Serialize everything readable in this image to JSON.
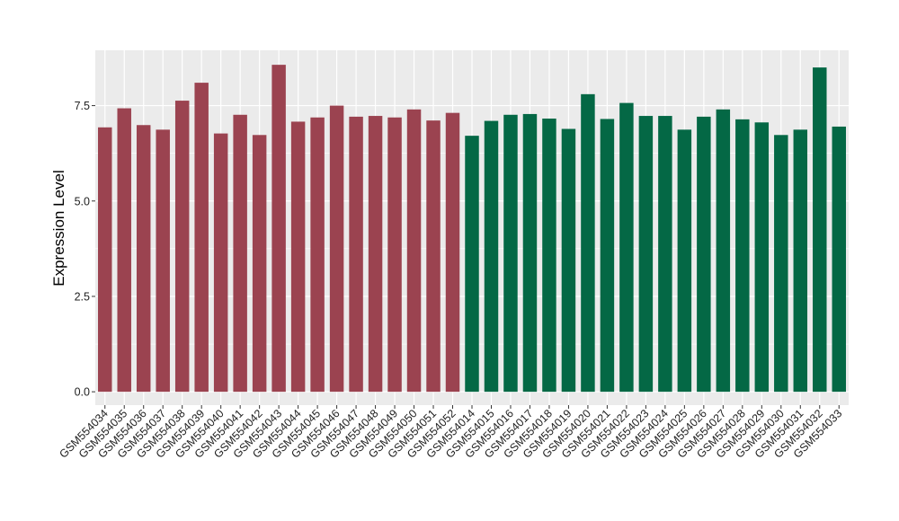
{
  "chart_data": {
    "type": "bar",
    "title": "",
    "xlabel": "",
    "ylabel": "Expression Level",
    "ylim": [
      -0.35,
      8.95
    ],
    "yticks": [
      "0.0",
      "2.5",
      "5.0",
      "7.5"
    ],
    "grid": true,
    "background": "#EBEBEB",
    "gridline_color": "#FFFFFF",
    "groups": [
      {
        "color": "#9B4350"
      },
      {
        "color": "#046845"
      }
    ],
    "categories": [
      "GSM554034",
      "GSM554035",
      "GSM554036",
      "GSM554037",
      "GSM554038",
      "GSM554039",
      "GSM554040",
      "GSM554041",
      "GSM554042",
      "GSM554043",
      "GSM554044",
      "GSM554045",
      "GSM554046",
      "GSM554047",
      "GSM554048",
      "GSM554049",
      "GSM554050",
      "GSM554051",
      "GSM554052",
      "GSM554014",
      "GSM554015",
      "GSM554016",
      "GSM554017",
      "GSM554018",
      "GSM554019",
      "GSM554020",
      "GSM554021",
      "GSM554022",
      "GSM554023",
      "GSM554024",
      "GSM554025",
      "GSM554026",
      "GSM554027",
      "GSM554028",
      "GSM554029",
      "GSM554030",
      "GSM554031",
      "GSM554032",
      "GSM554033"
    ],
    "values": [
      6.93,
      7.43,
      6.99,
      6.87,
      7.63,
      8.1,
      6.77,
      7.26,
      6.73,
      8.57,
      7.08,
      7.19,
      7.5,
      7.21,
      7.23,
      7.19,
      7.4,
      7.11,
      7.31,
      6.71,
      7.1,
      7.26,
      7.28,
      7.16,
      6.89,
      7.8,
      7.15,
      7.57,
      7.23,
      7.23,
      6.87,
      7.21,
      7.4,
      7.14,
      7.06,
      6.73,
      6.87,
      8.5,
      6.95
    ],
    "group_index": [
      0,
      0,
      0,
      0,
      0,
      0,
      0,
      0,
      0,
      0,
      0,
      0,
      0,
      0,
      0,
      0,
      0,
      0,
      0,
      1,
      1,
      1,
      1,
      1,
      1,
      1,
      1,
      1,
      1,
      1,
      1,
      1,
      1,
      1,
      1,
      1,
      1,
      1,
      1
    ]
  }
}
